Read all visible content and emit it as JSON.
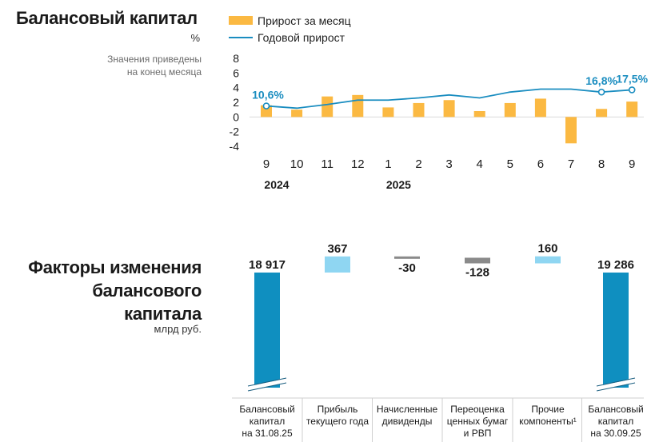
{
  "colors": {
    "bar": "#fbb942",
    "line": "#1a8dc0",
    "waterfall_total": "#0f8fc0",
    "waterfall_up": "#8fd6f2",
    "waterfall_down": "#8a8a8a",
    "axis_text": "#1a1a1a"
  },
  "chart1": {
    "title": "Балансовый капитал",
    "unit": "%",
    "note_line1": "Значения приведены",
    "note_line2": "на конец месяца",
    "legend_bar": "Прирост за месяц",
    "legend_line": "Годовой прирост"
  },
  "chart2": {
    "title_line1": "Факторы изменения",
    "title_line2": "балансового",
    "title_line3": "капитала",
    "unit": "млрд руб."
  },
  "chart_data": [
    {
      "type": "bar+line",
      "title": "Балансовый капитал",
      "ylabel": "%",
      "ylim": [
        -4,
        8
      ],
      "yticks": [
        "8",
        "6",
        "4",
        "2",
        "0",
        "-2",
        "-4"
      ],
      "categories": [
        "9",
        "10",
        "11",
        "12",
        "1",
        "2",
        "3",
        "4",
        "5",
        "6",
        "7",
        "8",
        "9"
      ],
      "years": [
        {
          "label": "2024",
          "at_index": 0
        },
        {
          "label": "2025",
          "at_index": 4
        }
      ],
      "series": [
        {
          "name": "Прирост за месяц",
          "kind": "bar",
          "values": [
            1.6,
            1.0,
            2.8,
            3.0,
            1.3,
            1.9,
            2.3,
            0.8,
            1.9,
            2.5,
            -3.6,
            1.1,
            2.1
          ]
        },
        {
          "name": "Годовой прирост",
          "kind": "line",
          "values": [
            1.5,
            1.2,
            1.7,
            2.3,
            2.3,
            2.6,
            3.0,
            2.6,
            3.4,
            3.8,
            3.8,
            3.4,
            3.7
          ]
        }
      ],
      "annotations": [
        {
          "index": 0,
          "text": "10,6%"
        },
        {
          "index": 11,
          "text": "16,8%"
        },
        {
          "index": 12,
          "text": "17,5%"
        }
      ]
    },
    {
      "type": "waterfall",
      "title": "Факторы изменения балансового капитала",
      "ylabel": "млрд руб.",
      "steps": [
        {
          "kind": "total",
          "value": 18917,
          "label": "18 917",
          "cat": [
            "Балансовый",
            "капитал",
            "на 31.08.25"
          ]
        },
        {
          "kind": "delta",
          "value": 367,
          "label": "367",
          "cat": [
            "Прибыль",
            "текущего года"
          ]
        },
        {
          "kind": "delta",
          "value": -30,
          "label": "-30",
          "cat": [
            "Начисленные",
            "дивиденды"
          ]
        },
        {
          "kind": "delta",
          "value": -128,
          "label": "-128",
          "cat": [
            "Переоценка",
            "ценных бумаг",
            "и РВП"
          ]
        },
        {
          "kind": "delta",
          "value": 160,
          "label": "160",
          "cat": [
            "Прочие",
            "компоненты¹"
          ]
        },
        {
          "kind": "total",
          "value": 19286,
          "label": "19 286",
          "cat": [
            "Балансовый",
            "капитал",
            "на 30.09.25"
          ]
        }
      ]
    }
  ]
}
